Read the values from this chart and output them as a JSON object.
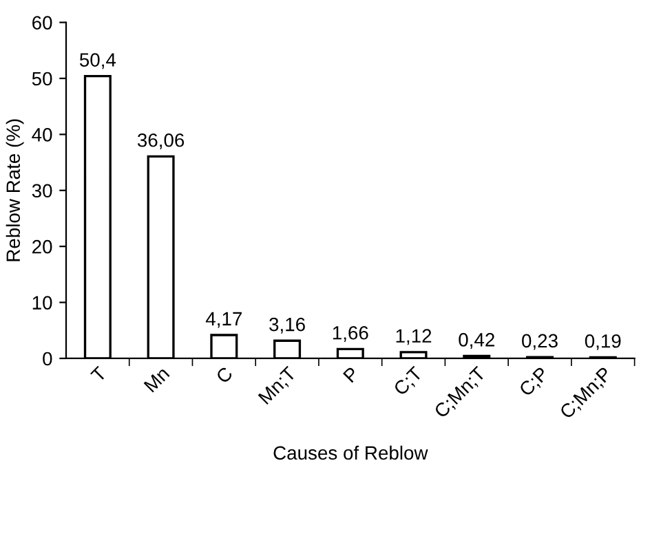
{
  "chart_data": {
    "type": "bar",
    "xlabel": "Causes of Reblow",
    "ylabel": "Reblow Rate (%)",
    "categories": [
      "T",
      "Mn",
      "C",
      "Mn;T",
      "P",
      "C;T",
      "C;Mn;T",
      "C;P",
      "C;Mn;P"
    ],
    "values": [
      50.4,
      36.06,
      4.17,
      3.16,
      1.66,
      1.12,
      0.42,
      0.23,
      0.19
    ],
    "value_labels": [
      "50,4",
      "36,06",
      "4,17",
      "3,16",
      "1,66",
      "1,12",
      "0,42",
      "0,23",
      "0,19"
    ],
    "color": "#ffffff",
    "ylim": [
      0,
      60
    ],
    "yticks": [
      0,
      10,
      20,
      30,
      40,
      50,
      60
    ],
    "grid": false,
    "legend": false
  }
}
